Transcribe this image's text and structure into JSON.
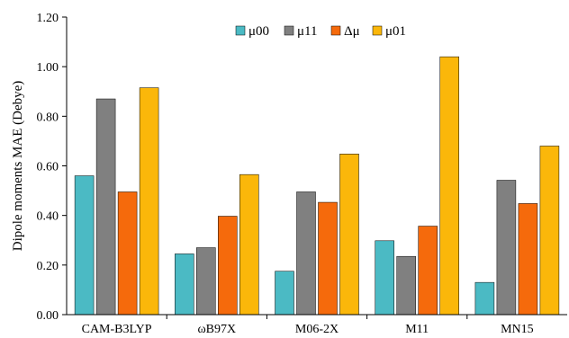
{
  "chart_data": {
    "type": "bar",
    "title": "",
    "xlabel": "",
    "ylabel": "Dipole moments MAE (Debye)",
    "ylim": [
      0,
      1.2
    ],
    "yticks": [
      "0.00",
      "0.20",
      "0.40",
      "0.60",
      "0.80",
      "1.00",
      "1.20"
    ],
    "categories": [
      "CAM-B3LYP",
      "ωB97X",
      "M06-2X",
      "M11",
      "MN15"
    ],
    "grid": false,
    "legend": "top-center",
    "series": [
      {
        "name": "μ00",
        "color": "#4bbac4",
        "values": [
          0.56,
          0.245,
          0.175,
          0.298,
          0.13
        ]
      },
      {
        "name": "μ11",
        "color": "#808080",
        "values": [
          0.87,
          0.27,
          0.495,
          0.235,
          0.542
        ]
      },
      {
        "name": "Δμ",
        "color": "#f56a0c",
        "values": [
          0.495,
          0.397,
          0.453,
          0.357,
          0.448
        ]
      },
      {
        "name": "μ01",
        "color": "#fbb70a",
        "values": [
          0.915,
          0.565,
          0.648,
          1.04,
          0.68
        ]
      }
    ]
  }
}
